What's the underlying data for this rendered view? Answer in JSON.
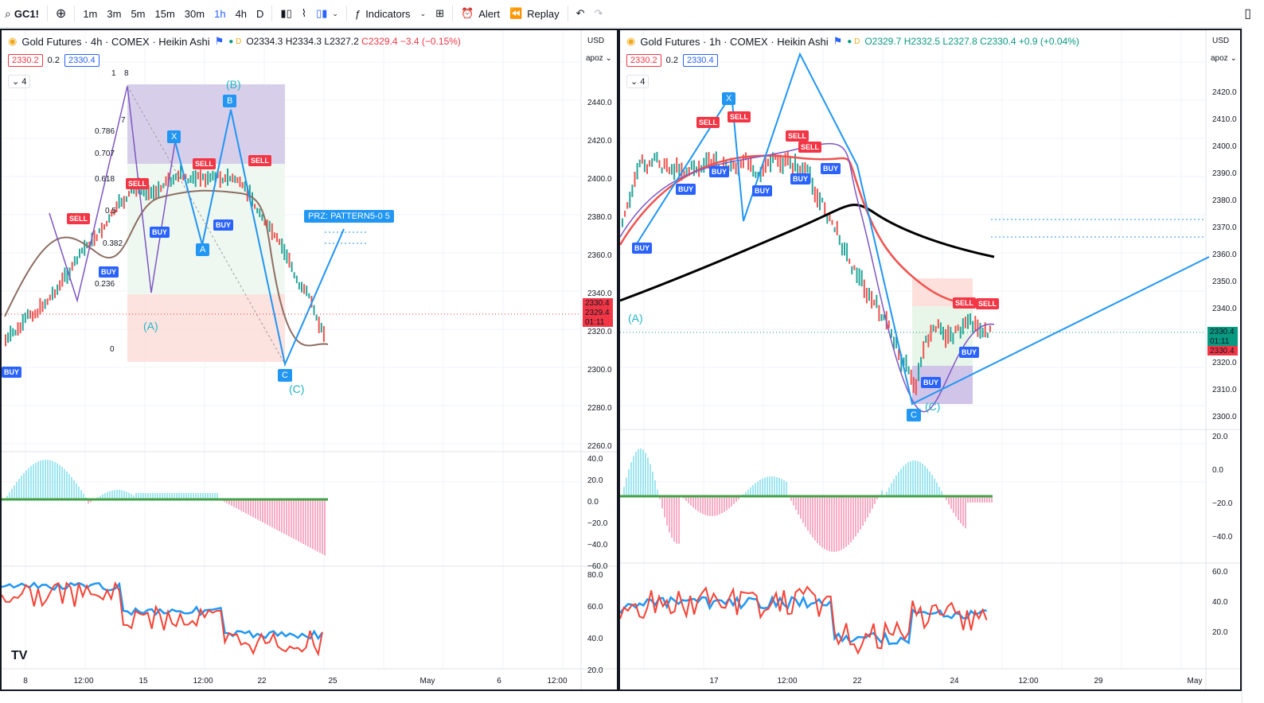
{
  "toolbar": {
    "symbol": "GC1!",
    "timeframes": [
      "1m",
      "3m",
      "5m",
      "15m",
      "30m",
      "1h",
      "4h",
      "D"
    ],
    "active_timeframe": "1h",
    "indicators_label": "Indicators",
    "alert_label": "Alert",
    "replay_label": "Replay"
  },
  "left": {
    "title": "Gold Futures · 4h · COMEX · Heikin Ashi",
    "ohlc": {
      "o": "O2334.3",
      "h": "H2334.3",
      "l": "L2327.2",
      "c": "C2329.4",
      "chg": "−3.4 (−0.15%)"
    },
    "box1": "2330.2",
    "mid": "0.2",
    "box2": "2330.4",
    "ind_count": "4",
    "currency": "USD",
    "scale_mode": "apoz",
    "price_ticks": [
      "2440.0",
      "2420.0",
      "2400.0",
      "2380.0",
      "2360.0",
      "2340.0",
      "2320.0",
      "2300.0",
      "2280.0",
      "2260.0"
    ],
    "osc_ticks": [
      "40.0",
      "20.0",
      "0.0",
      "−20.0",
      "−40.0",
      "−60.0"
    ],
    "rsi_ticks": [
      "80.0",
      "60.0",
      "40.0",
      "20.0"
    ],
    "price_tags": [
      "2330.4",
      "2329.4",
      "01:11"
    ],
    "time_ticks": [
      "8",
      "12:00",
      "15",
      "12:00",
      "22",
      "25",
      "May",
      "6",
      "12:00"
    ],
    "fib_levels": [
      "0.786",
      "0.707",
      "0.618",
      "0.5",
      "0.382",
      "0.236",
      "0",
      "1",
      "8",
      "7"
    ],
    "labels": {
      "x": "X",
      "a": "A",
      "b": "B",
      "c": "C",
      "wave_a": "(A)",
      "wave_b": "(B)",
      "wave_c": "(C)",
      "prz": "PRZ: PATTERN5-0 5"
    }
  },
  "right": {
    "title": "Gold Futures · 1h · COMEX · Heikin Ashi",
    "ohlc": {
      "o": "O2329.7",
      "h": "H2332.5",
      "l": "L2327.8",
      "c": "C2330.4",
      "chg": "+0.9 (+0.04%)"
    },
    "box1": "2330.2",
    "mid": "0.2",
    "box2": "2330.4",
    "ind_count": "4",
    "currency": "USD",
    "scale_mode": "apoz",
    "price_ticks": [
      "2420.0",
      "2410.0",
      "2400.0",
      "2390.0",
      "2380.0",
      "2370.0",
      "2360.0",
      "2350.0",
      "2340.0",
      "2330.0",
      "2320.0",
      "2310.0",
      "2300.0"
    ],
    "osc_ticks": [
      "20.0",
      "0.0",
      "−20.0",
      "−40.0"
    ],
    "rsi_ticks": [
      "60.0",
      "40.0",
      "20.0"
    ],
    "price_tags": [
      "2330.4",
      "01:11",
      "2330.4"
    ],
    "time_ticks": [
      "17",
      "12:00",
      "22",
      "24",
      "12:00",
      "29",
      "May"
    ],
    "labels": {
      "x": "X",
      "c": "C",
      "wave_a": "(A)",
      "wave_c": "(C)"
    }
  },
  "signals": {
    "sell": "SELL",
    "buy": "BUY"
  },
  "colors": {
    "up": "#089981",
    "down": "#f23645",
    "blue": "#2962ff",
    "accent": "#22b5c7"
  }
}
